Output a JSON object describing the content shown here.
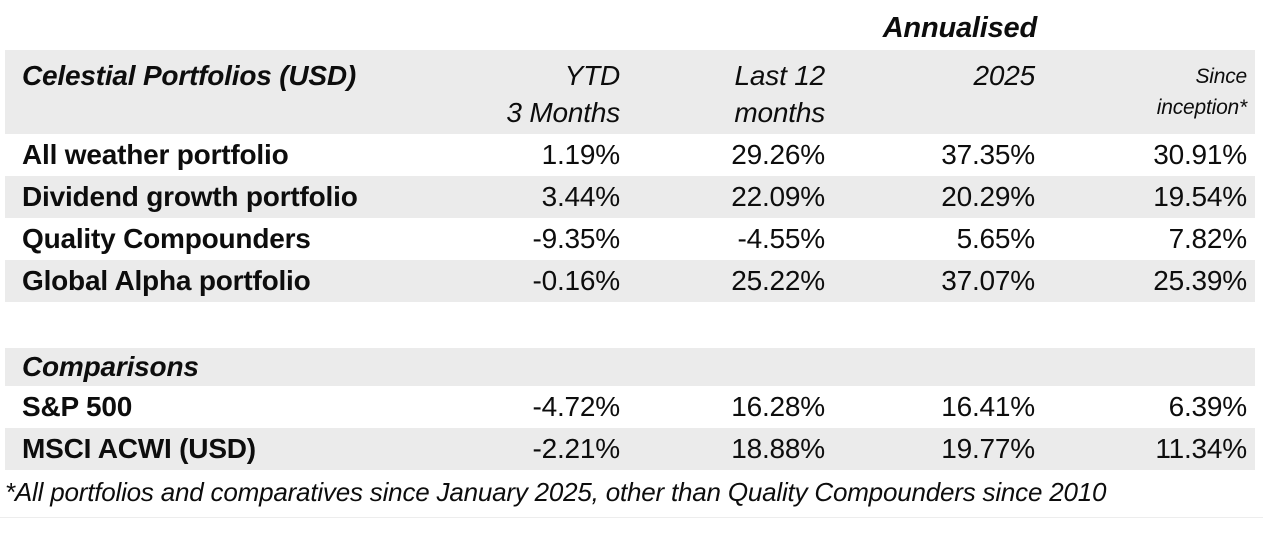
{
  "chart_data": {
    "type": "table",
    "title": "Celestial Portfolios (USD)",
    "super_header": "Annualised",
    "columns": [
      "YTD 3 Months",
      "Last 12 months",
      "2025",
      "Since inception*"
    ],
    "sections": [
      {
        "name": "Celestial Portfolios (USD)",
        "rows": [
          {
            "label": "All weather portfolio",
            "values": [
              "1.19%",
              "29.26%",
              "37.35%",
              "30.91%"
            ]
          },
          {
            "label": "Dividend growth portfolio",
            "values": [
              "3.44%",
              "22.09%",
              "20.29%",
              "19.54%"
            ]
          },
          {
            "label": "Quality Compounders",
            "values": [
              "-9.35%",
              "-4.55%",
              "5.65%",
              "7.82%"
            ]
          },
          {
            "label": "Global Alpha portfolio",
            "values": [
              "-0.16%",
              "25.22%",
              "37.07%",
              "25.39%"
            ]
          }
        ]
      },
      {
        "name": "Comparisons",
        "rows": [
          {
            "label": "S&P 500",
            "values": [
              "-4.72%",
              "16.28%",
              "16.41%",
              "6.39%"
            ]
          },
          {
            "label": "MSCI ACWI (USD)",
            "values": [
              "-2.21%",
              "18.88%",
              "19.77%",
              "11.34%"
            ]
          }
        ]
      }
    ],
    "footnote": "*All portfolios and comparatives since January 2025, other than Quality Compounders since 2010"
  },
  "annualised_label": "Annualised",
  "table": {
    "header": {
      "label": "Celestial Portfolios (USD)",
      "columns": [
        {
          "line1": "YTD",
          "line2": "3 Months"
        },
        {
          "line1": "Last 12",
          "line2": "months"
        },
        {
          "line1": "2025",
          "line2": ""
        },
        {
          "line1": "Since",
          "line2": "inception*"
        }
      ]
    },
    "portfolio_rows": [
      {
        "label": "All weather portfolio",
        "values": [
          "1.19%",
          "29.26%",
          "37.35%",
          "30.91%"
        ]
      },
      {
        "label": "Dividend growth portfolio",
        "values": [
          "3.44%",
          "22.09%",
          "20.29%",
          "19.54%"
        ]
      },
      {
        "label": "Quality Compounders",
        "values": [
          "-9.35%",
          "-4.55%",
          "5.65%",
          "7.82%"
        ]
      },
      {
        "label": "Global Alpha portfolio",
        "values": [
          "-0.16%",
          "25.22%",
          "37.07%",
          "25.39%"
        ]
      }
    ],
    "comparisons_label": "Comparisons",
    "comparison_rows": [
      {
        "label": "S&P 500",
        "values": [
          "-4.72%",
          "16.28%",
          "16.41%",
          "6.39%"
        ]
      },
      {
        "label": "MSCI ACWI (USD)",
        "values": [
          "-2.21%",
          "18.88%",
          "19.77%",
          "11.34%"
        ]
      }
    ]
  },
  "footnote": "*All portfolios and comparatives since January 2025, other than Quality Compounders since 2010",
  "colors": {
    "background": "#ffffff",
    "band": "#ebebeb",
    "text": "#0d0d0d"
  }
}
